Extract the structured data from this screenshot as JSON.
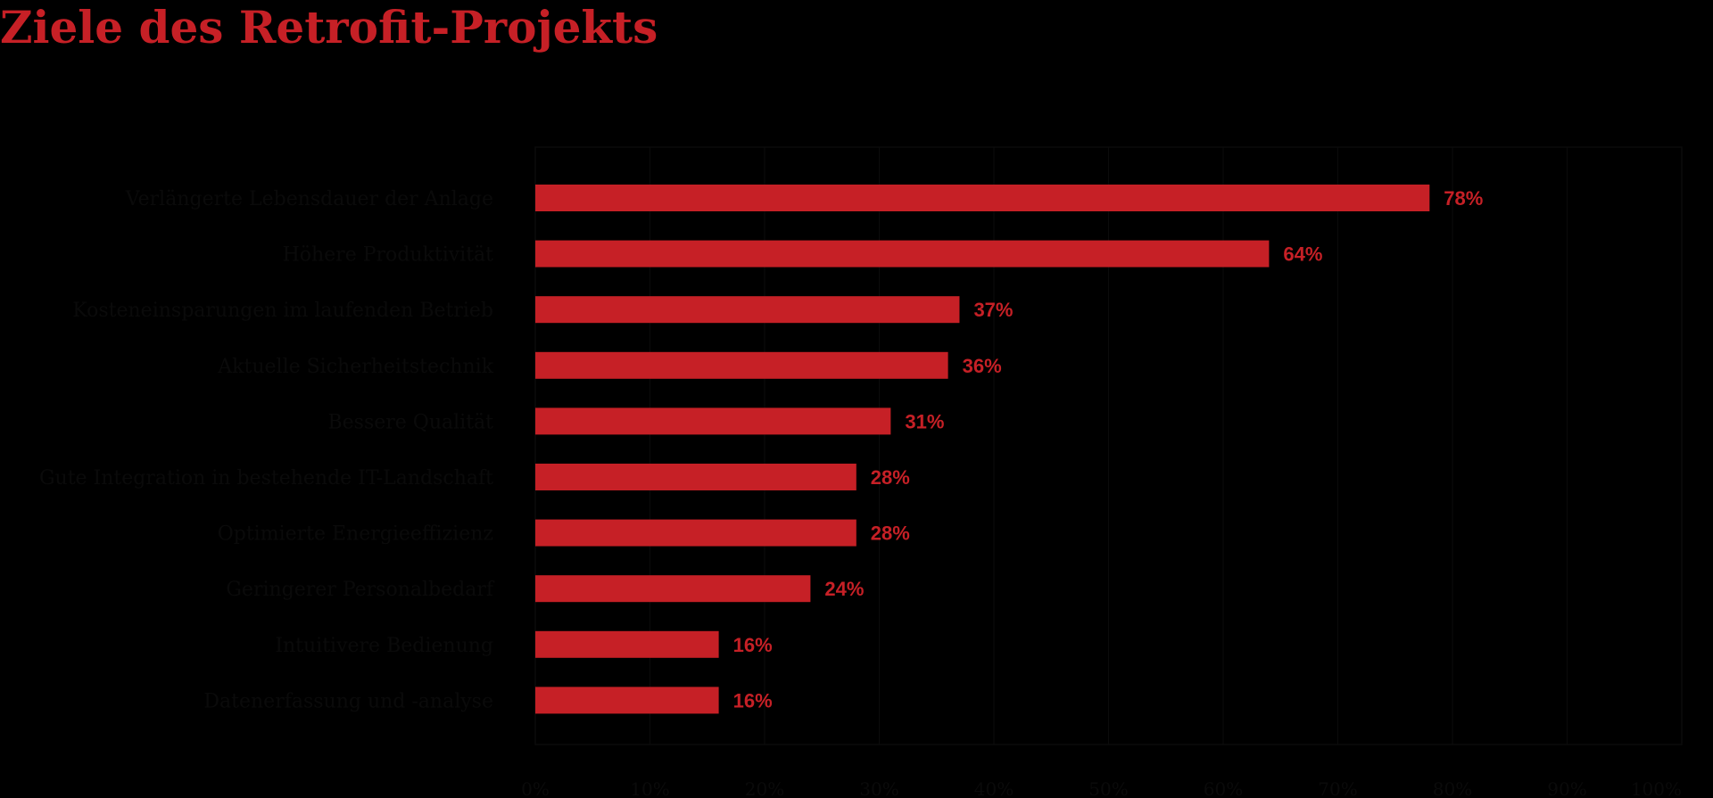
{
  "chart_data": {
    "type": "bar",
    "orientation": "horizontal",
    "title": "Ziele des Retrofit-Projekts",
    "categories": [
      "Verlängerte Lebensdauer der Anlage",
      "Höhere Produktivität",
      "Kosteneinsparungen im laufenden Betrieb",
      "Aktuelle Sicherheitstechnik",
      "Bessere Qualität",
      "Gute Integration in bestehende IT-Landschaft",
      "Optimierte Energieeffizienz",
      "Geringerer Personalbedarf",
      "Intuitivere Bedienung",
      "Datenerfassung und -analyse"
    ],
    "values": [
      78,
      64,
      37,
      36,
      31,
      28,
      28,
      24,
      16,
      16
    ],
    "value_labels": [
      "78%",
      "64%",
      "37%",
      "36%",
      "31%",
      "28%",
      "28%",
      "24%",
      "16%",
      "16%"
    ],
    "xlim": [
      0,
      100
    ],
    "x_ticks": [
      "0%",
      "10%",
      "20%",
      "30%",
      "40%",
      "50%",
      "60%",
      "70%",
      "80%",
      "90%",
      "100%"
    ],
    "grid": true,
    "colors": {
      "bar": "#c62026",
      "background": "#000000",
      "title": "#c62026"
    }
  }
}
